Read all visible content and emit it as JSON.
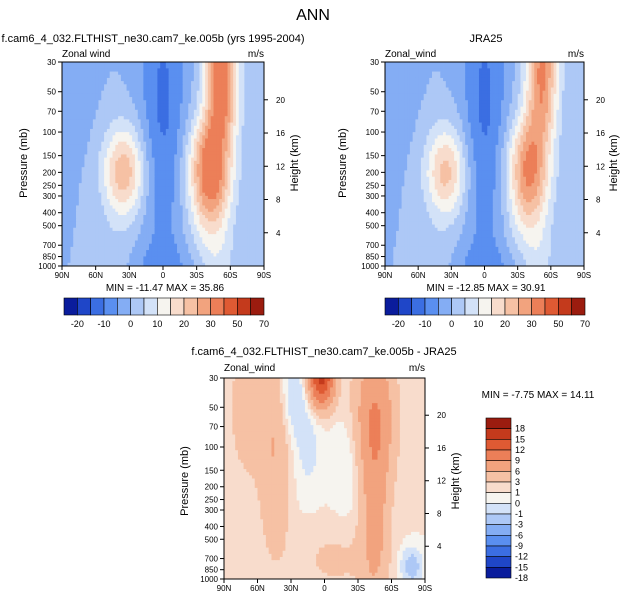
{
  "page": {
    "title": "ANN"
  },
  "colors": {
    "abs_levels": [
      "#0a1c9c",
      "#1f46c8",
      "#3b6ee2",
      "#5a8ff0",
      "#84adf4",
      "#adc8f6",
      "#d3e2f8",
      "#f6f4ef",
      "#f8dccc",
      "#f6c1a4",
      "#f2a37e",
      "#ec7f58",
      "#df5a33",
      "#c43a1c",
      "#9b1c0f"
    ],
    "diff_levels": [
      "#0a1c9c",
      "#1f46c8",
      "#3b6ee2",
      "#5a8ff0",
      "#84adf4",
      "#adc8f6",
      "#d3e2f8",
      "#f6f4ef",
      "#f8dccc",
      "#f6c1a4",
      "#f2a37e",
      "#ec7f58",
      "#df5a33",
      "#c43a1c",
      "#9b1c0f"
    ]
  },
  "chart_data": [
    {
      "type": "heatmap",
      "id": "model",
      "title": "f.cam6_4_032.FLTHIST_ne30.cam7_ke.005b (yrs 1995-2004)",
      "left_label": "Zonal wind",
      "right_label": "m/s",
      "ylabel": "Pressure (mb)",
      "ylabel_right": "Height (km)",
      "x_ticks": [
        "90N",
        "60N",
        "30N",
        "0",
        "30S",
        "60S",
        "90S"
      ],
      "y_ticks": [
        "30",
        "50",
        "70",
        "100",
        "150",
        "200",
        "250",
        "300",
        "400",
        "500",
        "700",
        "850",
        "1000"
      ],
      "y_ticks_right": [
        "20",
        "16",
        "12",
        "8",
        "4"
      ],
      "min_max": "MIN = -11.47   MAX = 35.86",
      "min": -11.47,
      "max": 35.86,
      "jets": {
        "nh_core_lat": 35,
        "nh_core_p": 200,
        "nh_max": 24,
        "sh_core_lat": -42,
        "sh_core_p": 200,
        "sh_max": 36,
        "strat_sh_max": 35
      }
    },
    {
      "type": "heatmap",
      "id": "obs",
      "title": "JRA25",
      "left_label": "Zonal_wind",
      "right_label": "m/s",
      "ylabel": "Pressure (mb)",
      "ylabel_right": "Height (km)",
      "x_ticks": [
        "90N",
        "60N",
        "30N",
        "0",
        "30S",
        "60S",
        "90S"
      ],
      "y_ticks": [
        "30",
        "50",
        "70",
        "100",
        "150",
        "200",
        "250",
        "300",
        "400",
        "500",
        "700",
        "850",
        "1000"
      ],
      "y_ticks_right": [
        "20",
        "16",
        "12",
        "8",
        "4"
      ],
      "min_max": "MIN = -12.85   MAX = 30.91",
      "min": -12.85,
      "max": 30.91,
      "jets": {
        "nh_core_lat": 35,
        "nh_core_p": 200,
        "nh_max": 22,
        "sh_core_lat": -40,
        "sh_core_p": 200,
        "sh_max": 31,
        "strat_sh_max": 30
      }
    },
    {
      "type": "heatmap",
      "id": "diff",
      "title": "f.cam6_4_032.FLTHIST_ne30.cam7_ke.005b - JRA25",
      "left_label": "Zonal_wind",
      "right_label": "m/s",
      "ylabel": "Pressure (mb)",
      "ylabel_right": "Height (km)",
      "x_ticks": [
        "90N",
        "60N",
        "30N",
        "0",
        "30S",
        "60S",
        "90S"
      ],
      "y_ticks": [
        "30",
        "50",
        "70",
        "100",
        "150",
        "200",
        "250",
        "300",
        "400",
        "500",
        "700",
        "850",
        "1000"
      ],
      "y_ticks_right": [
        "20",
        "16",
        "12",
        "8",
        "4"
      ],
      "min_max": "MIN = -7.75   MAX = 14.11",
      "min": -7.75,
      "max": 14.11
    }
  ],
  "colorbars": {
    "abs": {
      "labels": [
        "-20",
        "-10",
        "0",
        "10",
        "20",
        "30",
        "50",
        "70"
      ]
    },
    "diff": {
      "labels": [
        "18",
        "15",
        "12",
        "9",
        "6",
        "3",
        "1",
        "0",
        "-1",
        "-3",
        "-6",
        "-9",
        "-12",
        "-15",
        "-18"
      ]
    }
  }
}
